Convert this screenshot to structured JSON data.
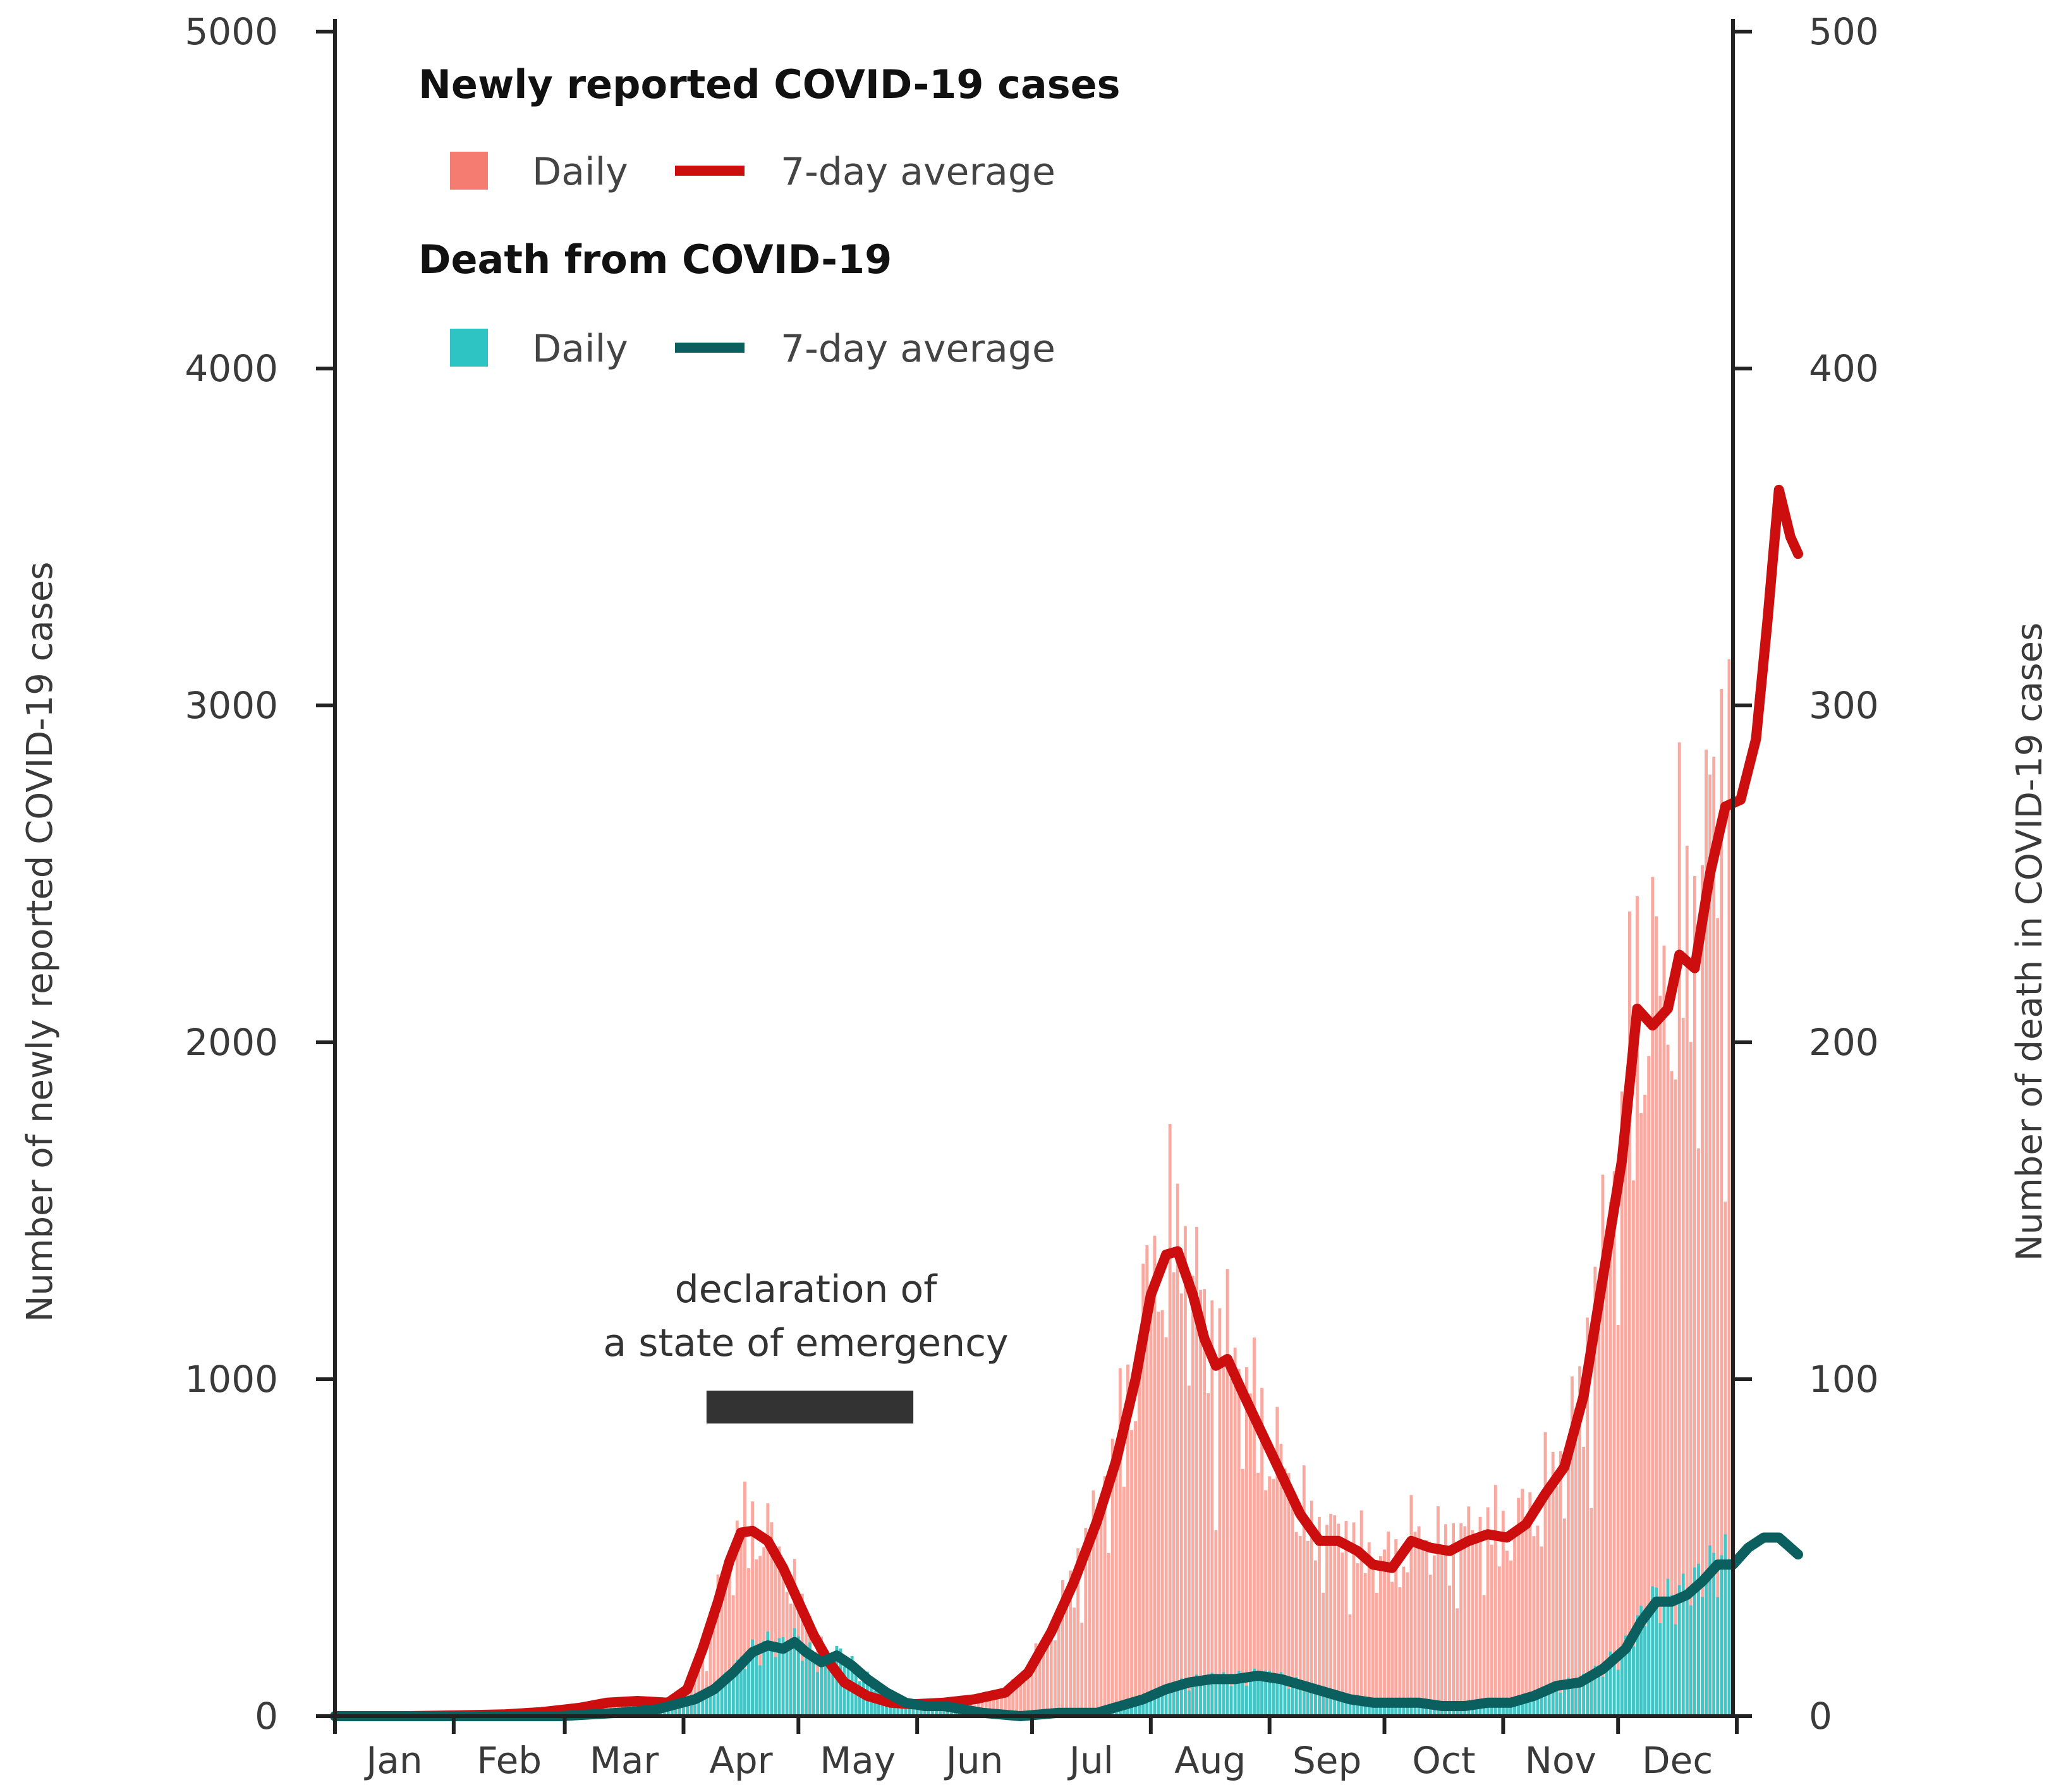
{
  "chart_data": {
    "type": "bar",
    "x_axis": {
      "months": [
        "Jan",
        "Feb",
        "Mar",
        "Apr",
        "May",
        "Jun",
        "Jul",
        "Aug",
        "Sep",
        "Oct",
        "Nov",
        "Dec"
      ],
      "day_range": [
        1,
        366
      ]
    },
    "left_axis": {
      "label": "Number of newly reported COVID-19 cases",
      "ylim": [
        0,
        5000
      ],
      "ticks": [
        "0",
        "1000",
        "2000",
        "3000",
        "4000",
        "5000"
      ]
    },
    "right_axis": {
      "label": "Number of death in COVID-19 cases",
      "ylim": [
        0,
        500
      ],
      "ticks": [
        "0",
        "100",
        "200",
        "300",
        "400",
        "500"
      ]
    },
    "legend": {
      "placement": "top-left",
      "cases_title": "Newly reported COVID-19 cases",
      "deaths_title": "Death from COVID-19",
      "daily_label": "Daily",
      "avg_label": "7-day average"
    },
    "colors": {
      "cases_daily": "#f9a9a0",
      "cases_daily_legend": "#f47c70",
      "cases_avg": "#cc0e0e",
      "deaths_daily": "#3fc6c6",
      "deaths_daily_legend": "#2ec4c4",
      "deaths_avg": "#0c5f5f",
      "emergency_bar": "#333333"
    },
    "annotation": {
      "line1": "declaration of",
      "line2": "a state of emergency",
      "start_day": 98,
      "end_day": 152
    },
    "series": [
      {
        "name": "Newly reported COVID-19 cases — 7-day average",
        "axis": "left",
        "points": [
          [
            1,
            0
          ],
          [
            20,
            0
          ],
          [
            32,
            2
          ],
          [
            45,
            5
          ],
          [
            55,
            12
          ],
          [
            65,
            25
          ],
          [
            72,
            40
          ],
          [
            80,
            45
          ],
          [
            88,
            40
          ],
          [
            93,
            80
          ],
          [
            97,
            200
          ],
          [
            101,
            340
          ],
          [
            104,
            460
          ],
          [
            107,
            545
          ],
          [
            110,
            550
          ],
          [
            114,
            520
          ],
          [
            118,
            440
          ],
          [
            122,
            340
          ],
          [
            126,
            240
          ],
          [
            130,
            160
          ],
          [
            134,
            100
          ],
          [
            140,
            60
          ],
          [
            146,
            40
          ],
          [
            152,
            35
          ],
          [
            160,
            40
          ],
          [
            168,
            50
          ],
          [
            176,
            70
          ],
          [
            182,
            130
          ],
          [
            188,
            250
          ],
          [
            194,
            400
          ],
          [
            200,
            580
          ],
          [
            205,
            760
          ],
          [
            210,
            1000
          ],
          [
            214,
            1250
          ],
          [
            218,
            1370
          ],
          [
            221,
            1380
          ],
          [
            225,
            1250
          ],
          [
            228,
            1120
          ],
          [
            231,
            1040
          ],
          [
            234,
            1060
          ],
          [
            238,
            960
          ],
          [
            243,
            840
          ],
          [
            248,
            720
          ],
          [
            253,
            600
          ],
          [
            258,
            520
          ],
          [
            263,
            520
          ],
          [
            268,
            490
          ],
          [
            272,
            450
          ],
          [
            277,
            440
          ],
          [
            282,
            520
          ],
          [
            287,
            500
          ],
          [
            292,
            490
          ],
          [
            297,
            520
          ],
          [
            302,
            540
          ],
          [
            307,
            530
          ],
          [
            312,
            570
          ],
          [
            317,
            660
          ],
          [
            322,
            740
          ],
          [
            327,
            950
          ],
          [
            332,
            1300
          ],
          [
            337,
            1650
          ],
          [
            341,
            2100
          ],
          [
            345,
            2050
          ],
          [
            349,
            2100
          ],
          [
            352,
            2260
          ],
          [
            356,
            2220
          ],
          [
            360,
            2500
          ],
          [
            364,
            2700
          ],
          [
            368,
            2720
          ],
          [
            372,
            2900
          ],
          [
            375,
            3250
          ],
          [
            378,
            3640
          ],
          [
            381,
            3500
          ],
          [
            383,
            3450
          ]
        ]
      },
      {
        "name": "Death from COVID-19 — 7-day average",
        "axis": "right",
        "points": [
          [
            1,
            0
          ],
          [
            60,
            0
          ],
          [
            75,
            1
          ],
          [
            85,
            2
          ],
          [
            95,
            5
          ],
          [
            100,
            8
          ],
          [
            105,
            13
          ],
          [
            110,
            19
          ],
          [
            114,
            21
          ],
          [
            118,
            20
          ],
          [
            121,
            22
          ],
          [
            124,
            19
          ],
          [
            128,
            16
          ],
          [
            132,
            18
          ],
          [
            136,
            15
          ],
          [
            140,
            11
          ],
          [
            145,
            7
          ],
          [
            150,
            4
          ],
          [
            155,
            3
          ],
          [
            160,
            3
          ],
          [
            165,
            2
          ],
          [
            170,
            1
          ],
          [
            180,
            0
          ],
          [
            190,
            1
          ],
          [
            200,
            1
          ],
          [
            206,
            3
          ],
          [
            212,
            5
          ],
          [
            218,
            8
          ],
          [
            224,
            10
          ],
          [
            230,
            11
          ],
          [
            236,
            11
          ],
          [
            242,
            12
          ],
          [
            248,
            11
          ],
          [
            254,
            9
          ],
          [
            260,
            7
          ],
          [
            266,
            5
          ],
          [
            272,
            4
          ],
          [
            278,
            4
          ],
          [
            284,
            4
          ],
          [
            290,
            3
          ],
          [
            296,
            3
          ],
          [
            302,
            4
          ],
          [
            308,
            4
          ],
          [
            314,
            6
          ],
          [
            320,
            9
          ],
          [
            326,
            10
          ],
          [
            332,
            14
          ],
          [
            338,
            20
          ],
          [
            342,
            28
          ],
          [
            346,
            34
          ],
          [
            350,
            34
          ],
          [
            354,
            36
          ],
          [
            358,
            40
          ],
          [
            362,
            45
          ],
          [
            366,
            45
          ],
          [
            370,
            50
          ],
          [
            374,
            53
          ],
          [
            378,
            53
          ],
          [
            381,
            50
          ],
          [
            383,
            48
          ]
        ]
      }
    ]
  }
}
